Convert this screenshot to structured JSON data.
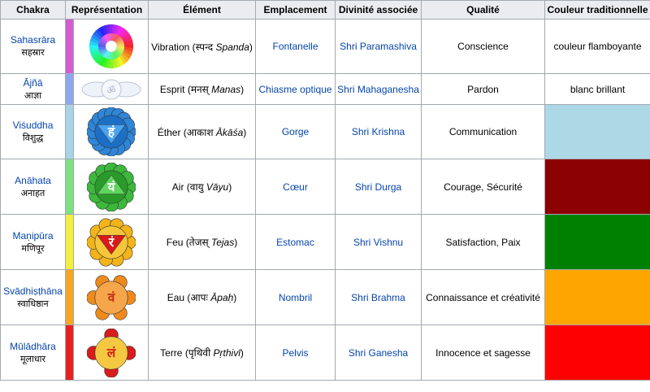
{
  "headers": {
    "chakra": "Chakra",
    "representation": "Représentation",
    "element": "Élément",
    "location": "Emplacement",
    "deity": "Divinité associée",
    "quality": "Qualité",
    "color": "Couleur traditionnelle"
  },
  "rows": [
    {
      "name": "Sahasrāra",
      "devanagari": "सहस्रार",
      "strip_color": "#d35cd3",
      "icon": "sahasrara-lotus-icon",
      "element_text": "Vibration (स्पन्द ",
      "element_ital": "Spanda",
      "element_close": ")",
      "location": "Fontanelle",
      "deity": "Shri Paramashiva",
      "quality": "Conscience",
      "color_text": "couleur flamboyante",
      "color_swatch": ""
    },
    {
      "name": "Ājñā",
      "devanagari": "आज्ञा",
      "strip_color": "#8ea8f0",
      "icon": "ajna-third-eye-icon",
      "element_text": "Esprit (मनस् ",
      "element_ital": "Manas",
      "element_close": ")",
      "location": "Chiasme optique",
      "deity": "Shri Mahaganesha",
      "quality": "Pardon",
      "color_text": "blanc brillant",
      "color_swatch": ""
    },
    {
      "name": "Viśuddha",
      "devanagari": "विशुद्ध",
      "strip_color": "#a9d4e8",
      "icon": "vishuddha-lotus-icon",
      "element_text": "Éther (आकाश ",
      "element_ital": "Ākāśa",
      "element_close": ")",
      "location": "Gorge",
      "deity": "Shri Krishna",
      "quality": "Communication",
      "color_text": "",
      "color_swatch": "#add8e6"
    },
    {
      "name": "Anāhata",
      "devanagari": "अनाहत",
      "strip_color": "#7ee07e",
      "icon": "anahata-lotus-icon",
      "element_text": "Air (वायु ",
      "element_ital": "Vāyu",
      "element_close": ")",
      "location": "Cœur",
      "deity": "Shri Durga",
      "quality": "Courage, Sécurité",
      "color_text": "",
      "color_swatch": "#8b0000"
    },
    {
      "name": "Maṇipūra",
      "devanagari": "मणिपूर",
      "strip_color": "#f5ee3a",
      "icon": "manipura-lotus-icon",
      "element_text": "Feu (तेजस् ",
      "element_ital": "Tejas",
      "element_close": ")",
      "location": "Estomac",
      "deity": "Shri Vishnu",
      "quality": "Satisfaction, Paix",
      "color_text": "",
      "color_swatch": "#008000"
    },
    {
      "name": "Svādhiṣṭhāna",
      "devanagari": "स्वाधिष्ठान",
      "strip_color": "#f5a623",
      "icon": "svadhisthana-lotus-icon",
      "element_text": "Eau (आपः ",
      "element_ital": "Āpaḥ",
      "element_close": ")",
      "location": "Nombril",
      "deity": "Shri Brahma",
      "quality": "Connaissance et créativité",
      "color_text": "",
      "color_swatch": "#ffa500"
    },
    {
      "name": "Mūlādhāra",
      "devanagari": "मूलाधार",
      "strip_color": "#e82020",
      "icon": "muladhara-lotus-icon",
      "element_text": "Terre (पृथिवी ",
      "element_ital": "Pṛthivī",
      "element_close": ")",
      "location": "Pelvis",
      "deity": "Shri Ganesha",
      "quality": "Innocence et sagesse",
      "color_text": "",
      "color_swatch": "#ff0000"
    }
  ],
  "icons": {
    "vishuddha_glyph": "हं",
    "anahata_glyph": "यं",
    "manipura_glyph": "रं",
    "svadhisthana_glyph": "वं",
    "muladhara_glyph": "लं",
    "ajna_glyph": "ॐ"
  }
}
